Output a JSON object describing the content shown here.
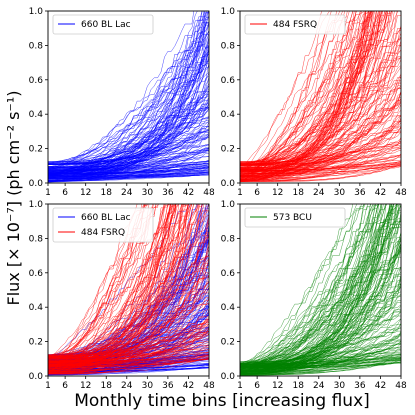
{
  "figure": {
    "xlabel": "Monthly time bins [increasing flux]",
    "ylabel": "Flux [× 10⁻⁷] (ph cm⁻² s⁻¹)"
  },
  "chart_data": [
    {
      "type": "line",
      "panel": "top-left",
      "xlim": [
        1,
        48
      ],
      "ylim": [
        0,
        1.0
      ],
      "xticks": [
        "1",
        "6",
        "12",
        "18",
        "24",
        "30",
        "36",
        "42",
        "48"
      ],
      "yticks": [
        "0.0",
        "0.2",
        "0.4",
        "0.6",
        "0.8",
        "1.0"
      ],
      "legend_position": "top-left",
      "series": [
        {
          "name": "660 BL Lac",
          "color": "#0000ff",
          "count": 660,
          "median_start": 0.03,
          "median_end": 0.26
        }
      ]
    },
    {
      "type": "line",
      "panel": "top-right",
      "xlim": [
        1,
        48
      ],
      "ylim": [
        0,
        1.0
      ],
      "xticks": [
        "1",
        "6",
        "12",
        "18",
        "24",
        "30",
        "36",
        "42",
        "48"
      ],
      "yticks": [
        "0.0",
        "0.2",
        "0.4",
        "0.6",
        "0.8",
        "1.0"
      ],
      "legend_position": "top-left",
      "series": [
        {
          "name": "484 FSRQ",
          "color": "#ff0000",
          "count": 484,
          "median_start": 0.03,
          "median_end": 0.55
        }
      ]
    },
    {
      "type": "line",
      "panel": "bottom-left",
      "xlim": [
        1,
        48
      ],
      "ylim": [
        0,
        1.0
      ],
      "xticks": [
        "1",
        "6",
        "12",
        "18",
        "24",
        "30",
        "36",
        "42",
        "48"
      ],
      "yticks": [
        "0.0",
        "0.2",
        "0.4",
        "0.6",
        "0.8",
        "1.0"
      ],
      "legend_position": "top-left",
      "series": [
        {
          "name": "660 BL Lac",
          "color": "#0000ff",
          "count": 660,
          "median_start": 0.03,
          "median_end": 0.26
        },
        {
          "name": "484 FSRQ",
          "color": "#ff0000",
          "count": 484,
          "median_start": 0.03,
          "median_end": 0.55
        }
      ]
    },
    {
      "type": "line",
      "panel": "bottom-right",
      "xlim": [
        1,
        48
      ],
      "ylim": [
        0,
        1.0
      ],
      "xticks": [
        "1",
        "6",
        "12",
        "18",
        "24",
        "30",
        "36",
        "42",
        "48"
      ],
      "yticks": [
        "0.0",
        "0.2",
        "0.4",
        "0.6",
        "0.8",
        "1.0"
      ],
      "legend_position": "top-left",
      "series": [
        {
          "name": "573 BCU",
          "color": "#008000",
          "count": 573,
          "median_start": 0.02,
          "median_end": 0.4
        }
      ]
    }
  ]
}
